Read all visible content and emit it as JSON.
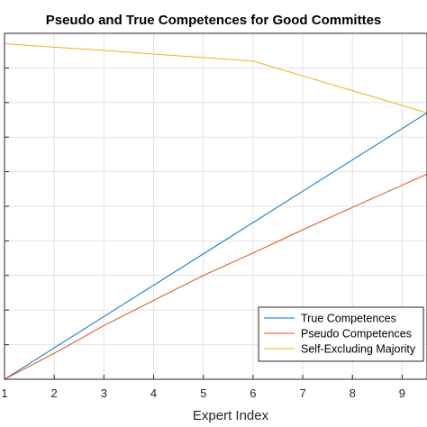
{
  "chart_data": {
    "type": "line",
    "title": "Pseudo and True Competences for Good Committes",
    "xlabel": "Expert Index",
    "ylabel": "",
    "x_ticks": [
      1,
      2,
      3,
      4,
      5,
      6,
      7,
      8,
      9
    ],
    "xlim": [
      1,
      9.5
    ],
    "ylim": [
      0,
      1
    ],
    "y_grid_count": 10,
    "grid": true,
    "legend_position": "bottom-right",
    "series": [
      {
        "name": "True Competences",
        "color": "#0072BD",
        "x": [
          1,
          9.5
        ],
        "y": [
          0.0,
          0.77
        ]
      },
      {
        "name": "Pseudo Competences",
        "color": "#D95319",
        "x": [
          1,
          2,
          3,
          4,
          5,
          6,
          7,
          8,
          9,
          9.5
        ],
        "y": [
          0.0,
          0.075,
          0.155,
          0.228,
          0.3,
          0.365,
          0.432,
          0.497,
          0.561,
          0.593
        ]
      },
      {
        "name": "Self-Excluding Majority",
        "color": "#EDB120",
        "x": [
          1,
          2,
          3,
          4,
          5,
          6,
          9.5
        ],
        "y": [
          0.97,
          0.96,
          0.951,
          0.94,
          0.93,
          0.92,
          0.77
        ]
      }
    ]
  }
}
